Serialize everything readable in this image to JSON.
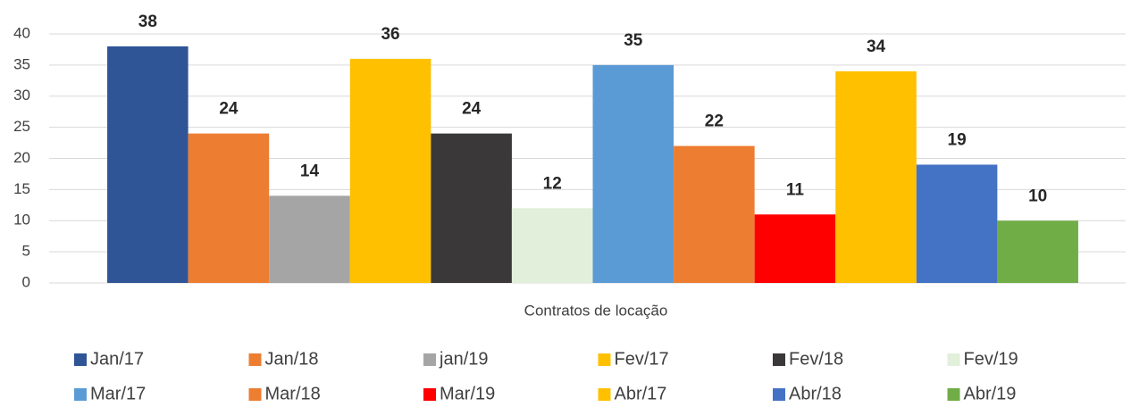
{
  "chart_data": {
    "type": "bar",
    "categories": [
      "Contratos de locação"
    ],
    "x_label": "Contratos de locação",
    "series": [
      {
        "name": "Jan/17",
        "color": "#2f5597",
        "values": [
          38
        ]
      },
      {
        "name": "Jan/18",
        "color": "#ed7d31",
        "values": [
          24
        ]
      },
      {
        "name": "jan/19",
        "color": "#a5a5a5",
        "values": [
          14
        ]
      },
      {
        "name": "Fev/17",
        "color": "#ffc000",
        "values": [
          36
        ]
      },
      {
        "name": "Fev/18",
        "color": "#3a3838",
        "values": [
          24
        ]
      },
      {
        "name": "Fev/19",
        "color": "#e2efda",
        "values": [
          12
        ]
      },
      {
        "name": "Mar/17",
        "color": "#5b9bd5",
        "values": [
          35
        ]
      },
      {
        "name": "Mar/18",
        "color": "#ed7d31",
        "values": [
          22
        ]
      },
      {
        "name": "Mar/19",
        "color": "#ff0000",
        "values": [
          11
        ]
      },
      {
        "name": "Abr/17",
        "color": "#ffc000",
        "values": [
          34
        ]
      },
      {
        "name": "Abr/18",
        "color": "#4472c4",
        "values": [
          19
        ]
      },
      {
        "name": "Abr/19",
        "color": "#70ad47",
        "values": [
          10
        ]
      }
    ],
    "ylim": [
      0,
      40
    ],
    "yticks": [
      0,
      5,
      10,
      15,
      20,
      25,
      30,
      35,
      40
    ],
    "grid": true,
    "legend": "bottom"
  }
}
